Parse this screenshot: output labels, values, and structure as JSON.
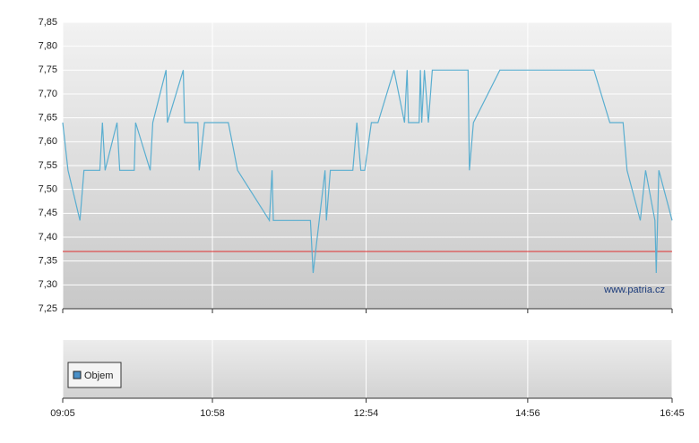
{
  "chart_data": {
    "type": "line",
    "x": [
      "09:05",
      "09:09",
      "09:18",
      "09:21",
      "09:33",
      "09:35",
      "09:37",
      "09:46",
      "09:48",
      "09:59",
      "10:00",
      "10:11",
      "10:13",
      "10:23",
      "10:24",
      "10:36",
      "10:37",
      "10:47",
      "10:48",
      "10:52",
      "11:10",
      "11:17",
      "11:41",
      "11:43",
      "11:44",
      "12:12",
      "12:14",
      "12:23",
      "12:24",
      "12:27",
      "12:44",
      "12:47",
      "12:50",
      "12:53",
      "12:58",
      "13:03",
      "13:15",
      "13:23",
      "13:25",
      "13:26",
      "13:34",
      "13:35",
      "13:36",
      "13:38",
      "13:41",
      "13:44",
      "14:11",
      "14:12",
      "14:15",
      "14:35",
      "15:46",
      "15:58",
      "16:08",
      "16:11",
      "16:21",
      "16:25",
      "16:32",
      "16:33",
      "16:35",
      "16:45"
    ],
    "values": [
      7.64,
      7.54,
      7.435,
      7.54,
      7.54,
      7.64,
      7.54,
      7.64,
      7.54,
      7.54,
      7.64,
      7.54,
      7.64,
      7.75,
      7.64,
      7.75,
      7.64,
      7.64,
      7.54,
      7.64,
      7.64,
      7.54,
      7.435,
      7.54,
      7.435,
      7.435,
      7.325,
      7.54,
      7.435,
      7.54,
      7.54,
      7.64,
      7.54,
      7.54,
      7.64,
      7.64,
      7.75,
      7.64,
      7.75,
      7.64,
      7.64,
      7.75,
      7.64,
      7.75,
      7.64,
      7.75,
      7.75,
      7.54,
      7.64,
      7.75,
      7.75,
      7.64,
      7.64,
      7.54,
      7.435,
      7.54,
      7.435,
      7.325,
      7.54,
      7.435
    ],
    "color": "#5aaed0",
    "xlim": [
      "09:05",
      "16:45"
    ],
    "xticks": [
      "09:05",
      "10:58",
      "12:54",
      "14:56",
      "16:45"
    ],
    "ylim": [
      7.25,
      7.85
    ],
    "yticks": [
      {
        "value": 7.25,
        "label": "7,25"
      },
      {
        "value": 7.3,
        "label": "7,30"
      },
      {
        "value": 7.35,
        "label": "7,35"
      },
      {
        "value": 7.4,
        "label": "7,40"
      },
      {
        "value": 7.45,
        "label": "7,45"
      },
      {
        "value": 7.5,
        "label": "7,50"
      },
      {
        "value": 7.55,
        "label": "7,55"
      },
      {
        "value": 7.6,
        "label": "7,60"
      },
      {
        "value": 7.65,
        "label": "7,65"
      },
      {
        "value": 7.7,
        "label": "7,70"
      },
      {
        "value": 7.75,
        "label": "7,75"
      },
      {
        "value": 7.8,
        "label": "7,80"
      },
      {
        "value": 7.85,
        "label": "7,85"
      }
    ],
    "reference_line": {
      "value": 7.37,
      "color": "#e03030"
    },
    "grid": true,
    "watermark": "www.patria.cz",
    "volume_legend": {
      "name": "Objem",
      "color": "#4a90c8"
    }
  }
}
